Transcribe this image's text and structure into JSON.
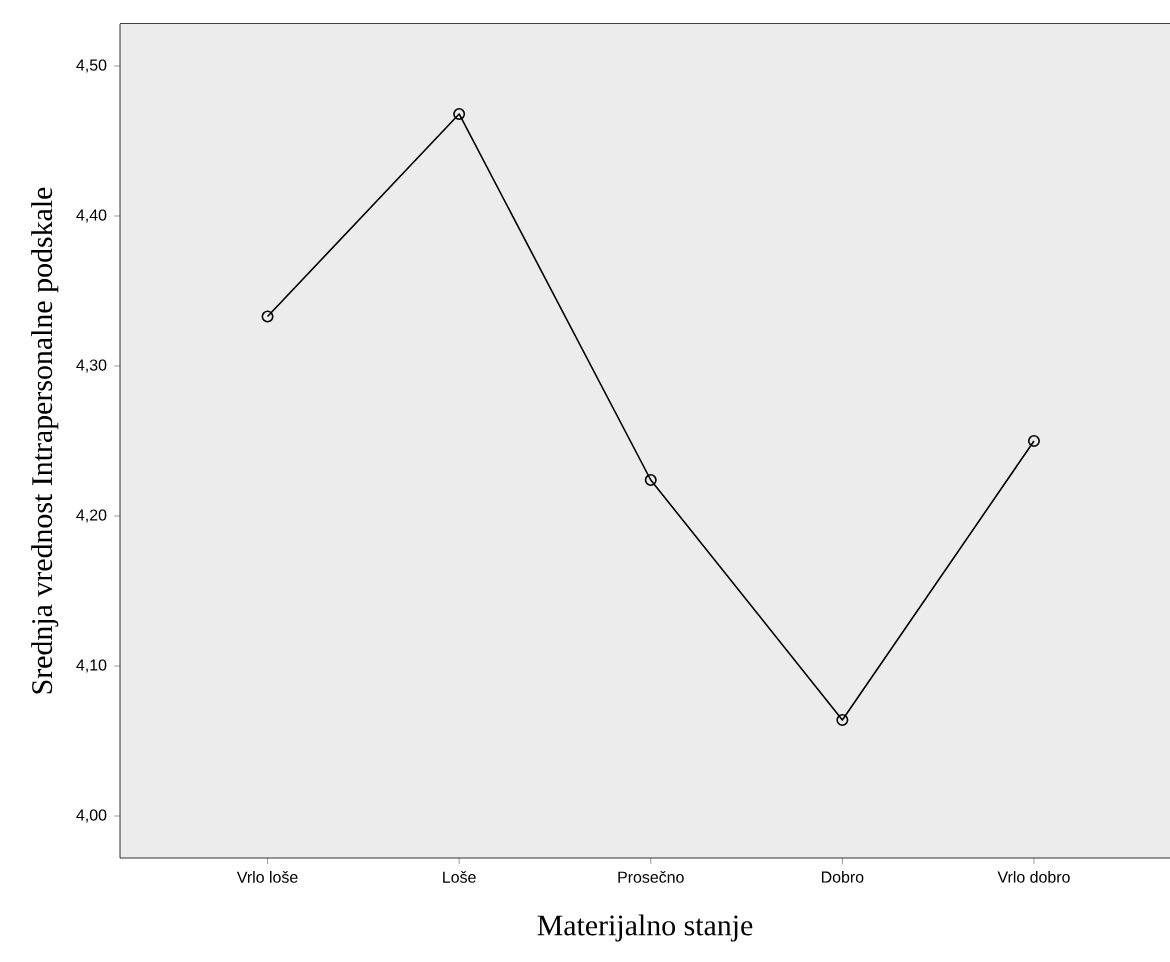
{
  "chart_data": {
    "type": "line",
    "xlabel": "Materijalno stanje",
    "ylabel": "Srednja vrednost Intrapersonalne podskale",
    "categories": [
      "Vrlo loše",
      "Loše",
      "Prosečno",
      "Dobro",
      "Vrlo dobro"
    ],
    "series": [
      {
        "color": "#000000",
        "values": [
          4.333,
          4.468,
          4.224,
          4.064,
          4.25
        ]
      }
    ],
    "ylim": [
      3.972,
      4.528
    ],
    "yticks": [
      {
        "value": 4.0,
        "label": "4,00"
      },
      {
        "value": 4.1,
        "label": "4,10"
      },
      {
        "value": 4.2,
        "label": "4,20"
      },
      {
        "value": 4.3,
        "label": "4,30"
      },
      {
        "value": 4.4,
        "label": "4,40"
      },
      {
        "value": 4.5,
        "label": "4,50"
      }
    ],
    "marker": "circle",
    "line_style": "solid"
  }
}
